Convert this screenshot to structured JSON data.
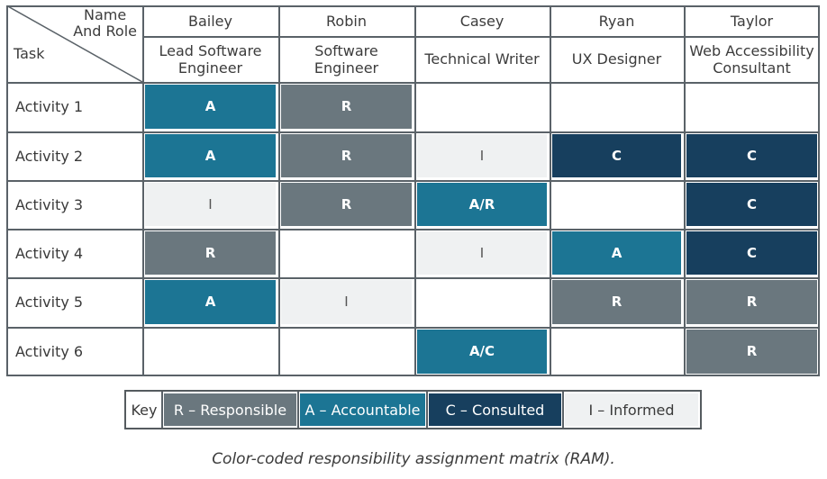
{
  "corner": {
    "top_label": "Name\nAnd Role",
    "bottom_label": "Task"
  },
  "people": [
    {
      "name": "Bailey",
      "role": "Lead Software\nEngineer"
    },
    {
      "name": "Robin",
      "role": "Software\nEngineer"
    },
    {
      "name": "Casey",
      "role": "Technical Writer"
    },
    {
      "name": "Ryan",
      "role": "UX Designer"
    },
    {
      "name": "Taylor",
      "role": "Web Accessibility\nConsultant"
    }
  ],
  "rows": [
    {
      "task": "Activity 1",
      "cells": [
        "A",
        "R",
        "",
        "",
        ""
      ]
    },
    {
      "task": "Activity 2",
      "cells": [
        "A",
        "R",
        "I",
        "C",
        "C"
      ]
    },
    {
      "task": "Activity 3",
      "cells": [
        "I",
        "R",
        "A/R",
        "",
        "C"
      ]
    },
    {
      "task": "Activity 4",
      "cells": [
        "R",
        "",
        "I",
        "A",
        "C"
      ]
    },
    {
      "task": "Activity 5",
      "cells": [
        "A",
        "I",
        "",
        "R",
        "R"
      ]
    },
    {
      "task": "Activity 6",
      "cells": [
        "",
        "",
        "A/C",
        "",
        "R"
      ]
    }
  ],
  "colors": {
    "R": "#6a777e",
    "A": "#1c7594",
    "C": "#173f5e",
    "I": "#eff1f2",
    "A/R": "#1c7594",
    "A/C": "#1c7594",
    "grid": "#5a6268"
  },
  "key": {
    "label": "Key",
    "items": [
      {
        "code": "R",
        "text": "R – Responsible"
      },
      {
        "code": "A",
        "text": "A – Accountable"
      },
      {
        "code": "C",
        "text": "C – Consulted"
      },
      {
        "code": "I",
        "text": "I – Informed"
      }
    ]
  },
  "caption": "Color-coded responsibility assignment matrix (RAM)."
}
